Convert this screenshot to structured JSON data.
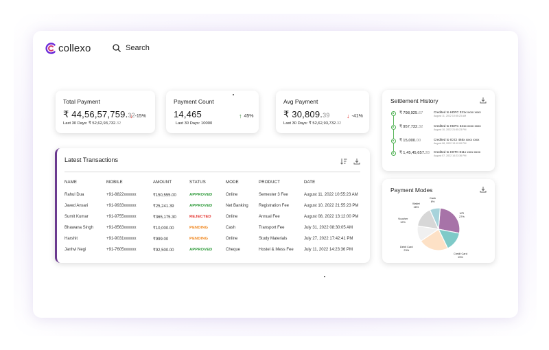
{
  "app": {
    "name": "collexo"
  },
  "header": {
    "search_label": "Search"
  },
  "stats": [
    {
      "title": "Total Payment",
      "value_main": "₹ 44,56,57,759.",
      "value_dec": "32",
      "change": "-15%",
      "direction": "down",
      "sub_main": "Last 30 Days: ₹ 52,62,93,732.",
      "sub_dec": "32"
    },
    {
      "title": "Payment Count",
      "value_main": "14,465",
      "value_dec": "",
      "change": "45%",
      "direction": "up",
      "sub_main": "Last 30 Days: 10000",
      "sub_dec": ""
    },
    {
      "title": "Avg Payment",
      "value_main": "₹ 30,809.",
      "value_dec": "39",
      "change": "-41%",
      "direction": "down",
      "sub_main": "Last 30 Days: ₹ 52,62,93,732.",
      "sub_dec": "32"
    }
  ],
  "transactions": {
    "title": "Latest Transactions",
    "columns": [
      "NAME",
      "MOBILE",
      "AMOUNT",
      "STATUS",
      "MODE",
      "PRODUCT",
      "DATE"
    ],
    "rows": [
      {
        "name": "Rahul Dua",
        "mobile": "+91-8822xxxxxx",
        "amount": "₹150,555.00",
        "status": "APPROVED",
        "mode": "Online",
        "product": "Semester 3 Fee",
        "date": "August 11, 2022 10:55:23 AM"
      },
      {
        "name": "Javed Ansari",
        "mobile": "+91-9933xxxxxx",
        "amount": "₹25,241.39",
        "status": "APPROVED",
        "mode": "Net Banking",
        "product": "Registration Fee",
        "date": "August 10, 2022 21:55:23 PM"
      },
      {
        "name": "Sumit Kumar",
        "mobile": "+91-9755xxxxxx",
        "amount": "₹365,175.30",
        "status": "REJECTED",
        "mode": "Online",
        "product": "Annual Fee",
        "date": "August 08, 2022 13:12:00 PM"
      },
      {
        "name": "Bhawana Singh",
        "mobile": "+91-8563xxxxxx",
        "amount": "₹10,000.00",
        "status": "PENDING",
        "mode": "Cash",
        "product": "Transport Fee",
        "date": "July 31, 2022 08:30:05 AM"
      },
      {
        "name": "Harshit",
        "mobile": "+91-9031xxxxxx",
        "amount": "₹999.00",
        "status": "PENDING",
        "mode": "Online",
        "product": "Study Materials",
        "date": "July 27, 2022 17:42:41 PM"
      },
      {
        "name": "Janhvi Negi",
        "mobile": "+91-7605xxxxxx",
        "amount": "₹92,500.00",
        "status": "APPROVED",
        "mode": "Cheque",
        "product": "Hostel & Mess Fee",
        "date": "July 11, 2022 14:23:36 PM"
      }
    ]
  },
  "status_colors": {
    "APPROVED": "#2e9a3a",
    "REJECTED": "#e53935",
    "PENDING": "#f08a24"
  },
  "settlement": {
    "title": "Settlement History",
    "items": [
      {
        "amount_main": "₹ 798,925.",
        "amount_dec": "67",
        "desc": "Credited to HDFC 321x xxxx xxxx",
        "date": "August 11, 2022 10:55:23 AM"
      },
      {
        "amount_main": "₹ 957,732.",
        "amount_dec": "32",
        "desc": "Credited to HDFC 321x xxxx xxxx",
        "date": "August 10, 2022 21:55:23 PM"
      },
      {
        "amount_main": "₹ 15,000.",
        "amount_dec": "00",
        "desc": "Credited to ICICI 465x xxxx xxxx",
        "date": "August 08, 2022 13:12:00 PM"
      },
      {
        "amount_main": "₹ 1,45,45,657.",
        "amount_dec": "28",
        "desc": "Credited to KOTK 811x xxxx xxxx",
        "date": "August 07, 2022 14:23:36 PM"
      }
    ]
  },
  "payment_modes": {
    "title": "Payment Modes",
    "chart_data": {
      "type": "pie",
      "title": "Payment Modes",
      "labels": [
        "UPI",
        "Credit Card",
        "Debit Card",
        "Voucher",
        "Wallet",
        "Cash"
      ],
      "values": [
        27,
        15,
        23,
        12,
        16,
        8
      ],
      "display": [
        "27%",
        "15%",
        "23%",
        "12%",
        "16%",
        "8%"
      ],
      "colors": [
        "#a773a8",
        "#7fcac8",
        "#fde1c6",
        "#f0f0f0",
        "#d7d7d7",
        "#a7d3db"
      ]
    }
  }
}
